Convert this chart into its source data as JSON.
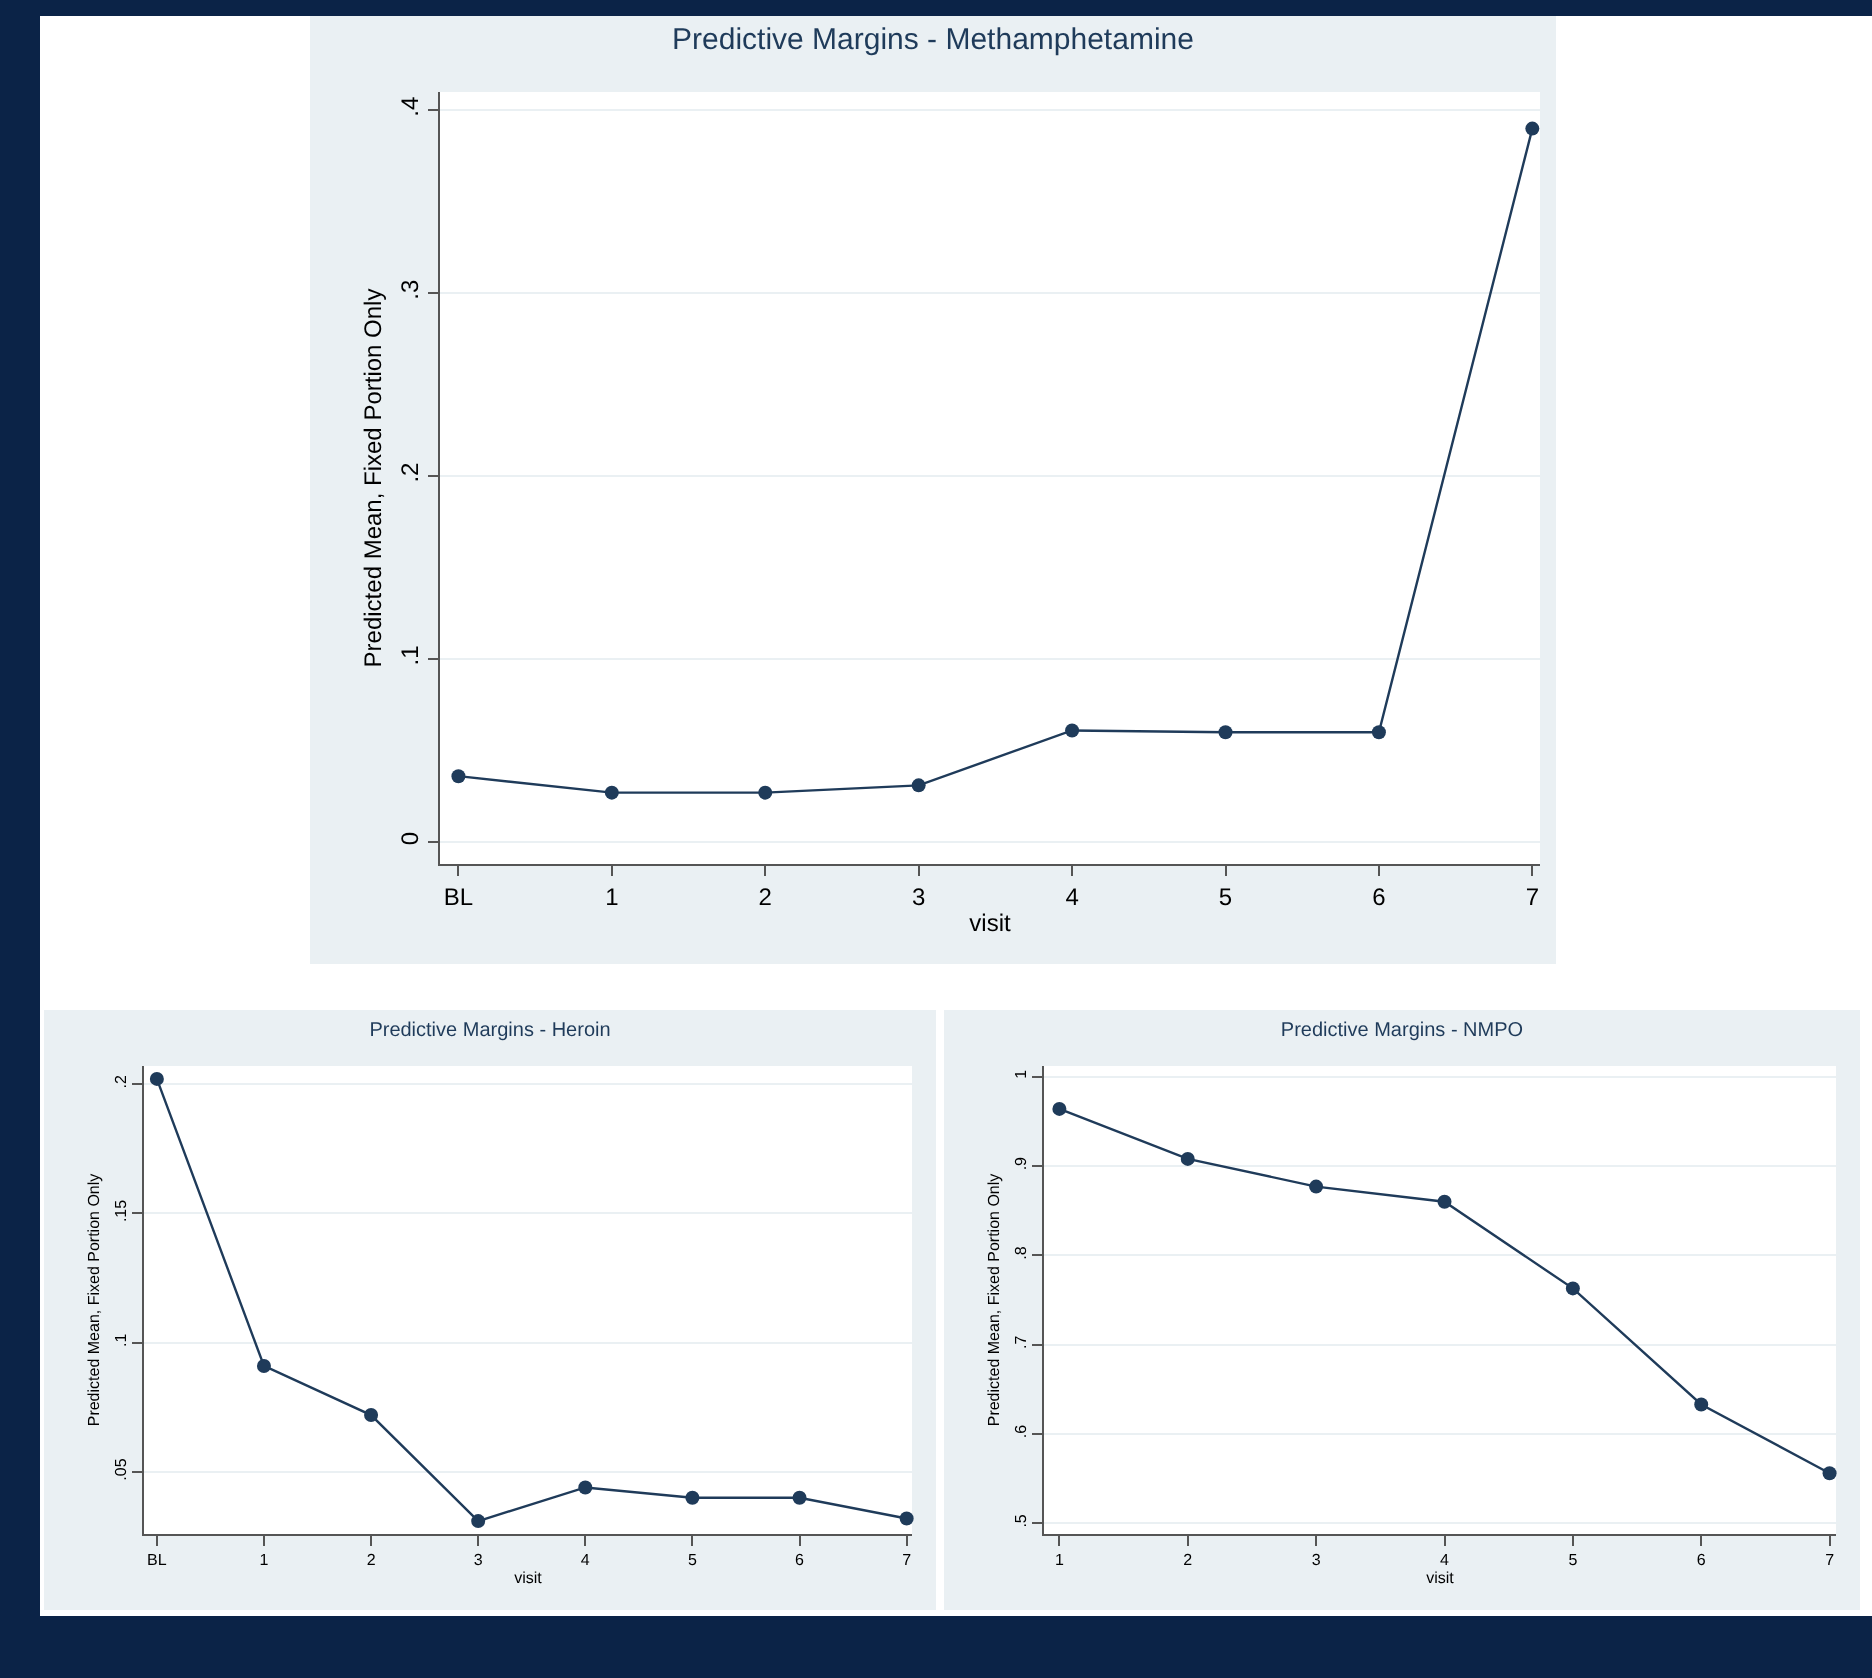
{
  "chart_data": [
    {
      "type": "line",
      "title": "Predictive Margins - Methamphetamine",
      "xlabel": "visit",
      "ylabel": "Predicted Mean, Fixed Portion Only",
      "categories": [
        "BL",
        "1",
        "2",
        "3",
        "4",
        "5",
        "6",
        "7"
      ],
      "series": [
        {
          "color": "#1f3b5a",
          "values": [
            0.036,
            0.027,
            0.027,
            0.031,
            0.061,
            0.06,
            0.06,
            0.39
          ]
        }
      ],
      "ylim": [
        -0.012,
        0.41
      ],
      "yticks": [
        0,
        {
          "value": 0.1,
          "label": ".1"
        },
        {
          "value": 0.2,
          "label": ".2"
        },
        {
          "value": 0.3,
          "label": ".3"
        },
        {
          "value": 0.4,
          "label": ".4"
        }
      ],
      "grid": "y",
      "marker": "circle",
      "line_style": "solid"
    },
    {
      "type": "line",
      "title": "Predictive Margins - Heroin",
      "xlabel": "visit",
      "ylabel": "Predicted Mean, Fixed Portion Only",
      "categories": [
        "BL",
        "1",
        "2",
        "3",
        "4",
        "5",
        "6",
        "7"
      ],
      "series": [
        {
          "color": "#1f3b5a",
          "values": [
            0.202,
            0.091,
            0.072,
            0.031,
            0.044,
            0.04,
            0.04,
            0.032
          ]
        }
      ],
      "ylim": [
        0.026,
        0.207
      ],
      "yticks": [
        {
          "value": 0.05,
          "label": ".05"
        },
        {
          "value": 0.1,
          "label": ".1"
        },
        {
          "value": 0.15,
          "label": ".15"
        },
        {
          "value": 0.2,
          "label": ".2"
        }
      ],
      "grid": "y",
      "marker": "circle",
      "line_style": "solid"
    },
    {
      "type": "line",
      "title": "Predictive Margins - NMPO",
      "xlabel": "visit",
      "ylabel": "Predicted Mean, Fixed Portion Only",
      "categories": [
        "1",
        "2",
        "3",
        "4",
        "5",
        "6",
        "7"
      ],
      "series": [
        {
          "color": "#1f3b5a",
          "values": [
            0.964,
            0.908,
            0.877,
            0.86,
            0.763,
            0.633,
            0.556
          ]
        }
      ],
      "ylim": [
        0.488,
        1.012
      ],
      "yticks": [
        {
          "value": 0.5,
          "label": ".5"
        },
        {
          "value": 0.6,
          "label": ".6"
        },
        {
          "value": 0.7,
          "label": ".7"
        },
        {
          "value": 0.8,
          "label": ".8"
        },
        {
          "value": 0.9,
          "label": ".9"
        },
        1
      ],
      "grid": "y",
      "marker": "circle",
      "line_style": "solid"
    }
  ]
}
